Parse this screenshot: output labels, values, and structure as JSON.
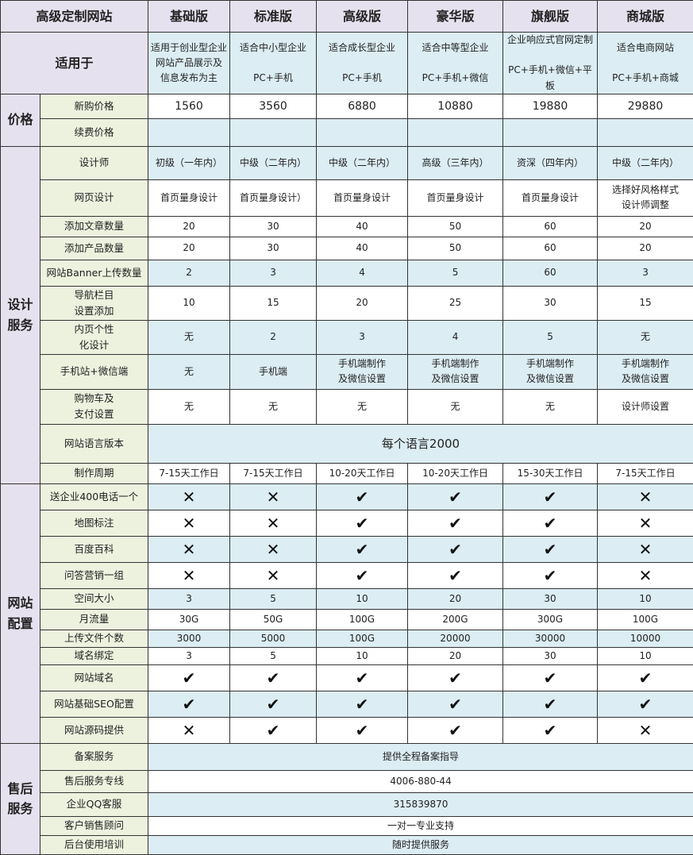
{
  "header": {
    "title": "高级定制网站",
    "plans": [
      "基础版",
      "标准版",
      "高级版",
      "豪华版",
      "旗舰版",
      "商城版"
    ]
  },
  "suitable": {
    "label": "适用于",
    "values": [
      "适用于创业型企业\n网站产品展示及\n信息发布为主",
      "适合中小型企业\n\nPC+手机",
      "适合成长型企业\n\nPC+手机",
      "适合中等型企业\n\nPC+手机+微信",
      "企业响应式官网定制\n\nPC+手机+微信+平板",
      "适合电商网站\n\nPC+手机+商城"
    ]
  },
  "sections": [
    {
      "category": "价格",
      "rows": [
        {
          "label": "新购价格",
          "values": [
            "1560",
            "3560",
            "6880",
            "10880",
            "19880",
            "29880"
          ]
        },
        {
          "label": "续费价格",
          "values": [
            "",
            "",
            "",
            "",
            "",
            ""
          ]
        }
      ]
    },
    {
      "category": "设计\n服务",
      "rows": [
        {
          "label": "设计师",
          "values": [
            "初级（一年内）",
            "中级（二年内）",
            "中级（二年内）",
            "高级（三年内）",
            "资深（四年内）",
            "中级（二年内）"
          ]
        },
        {
          "label": "网页设计",
          "values": [
            "首页量身设计",
            "首页量身设计）",
            "首页量身设计",
            "首页量身设计",
            "首页量身设计",
            "选择好风格样式\n设计师调整"
          ]
        },
        {
          "label": "添加文章数量",
          "values": [
            "20",
            "30",
            "40",
            "50",
            "60",
            "20"
          ]
        },
        {
          "label": "添加产品数量",
          "values": [
            "20",
            "30",
            "40",
            "50",
            "60",
            "20"
          ]
        },
        {
          "label": "网站Banner上传数量",
          "values": [
            "2",
            "3",
            "4",
            "5",
            "60",
            "3"
          ]
        },
        {
          "label": "导航栏目\n设置添加",
          "values": [
            "10",
            "15",
            "20",
            "25",
            "30",
            "15"
          ]
        },
        {
          "label": "内页个性\n化设计",
          "values": [
            "无",
            "2",
            "3",
            "4",
            "5",
            "无"
          ]
        },
        {
          "label": "手机站+微信端",
          "values": [
            "无",
            "手机端",
            "手机端制作\n及微信设置",
            "手机端制作\n及微信设置",
            "手机端制作\n及微信设置",
            "手机端制作\n及微信设置"
          ]
        },
        {
          "label": "购物车及\n支付设置",
          "values": [
            "无",
            "无",
            "无",
            "无",
            "无",
            "设计师设置"
          ]
        },
        {
          "label": "网站语言版本",
          "merged": "每个语言2000"
        },
        {
          "label": "制作周期",
          "values": [
            "7-15天工作日",
            "7-15天工作日",
            "10-20天工作日",
            "10-20天工作日",
            "15-30天工作日",
            "7-15天工作日"
          ]
        }
      ]
    },
    {
      "category": "网站\n配置",
      "rows": [
        {
          "label": "送企业400电话一个",
          "values": [
            "cross",
            "cross",
            "check",
            "check",
            "check",
            "cross"
          ]
        },
        {
          "label": "地图标注",
          "values": [
            "cross",
            "cross",
            "check",
            "check",
            "check",
            "cross"
          ]
        },
        {
          "label": "百度百科",
          "values": [
            "cross",
            "cross",
            "check",
            "check",
            "check",
            "cross"
          ]
        },
        {
          "label": "问答营销一组",
          "values": [
            "cross",
            "cross",
            "check",
            "check",
            "check",
            "cross"
          ]
        },
        {
          "label": "空间大小",
          "values": [
            "3",
            "5",
            "10",
            "20",
            "30",
            "10"
          ]
        },
        {
          "label": "月流量",
          "values": [
            "30G",
            "50G",
            "100G",
            "200G",
            "300G",
            "100G"
          ]
        },
        {
          "label": "上传文件个数",
          "values": [
            "3000",
            "5000",
            "100G",
            "20000",
            "30000",
            "10000"
          ]
        },
        {
          "label": "域名绑定",
          "values": [
            "3",
            "5",
            "10",
            "20",
            "30",
            "10"
          ]
        },
        {
          "label": "网站域名",
          "values": [
            "check",
            "check",
            "check",
            "check",
            "check",
            "check"
          ]
        },
        {
          "label": "网站基础SEO配置",
          "values": [
            "check",
            "check",
            "check",
            "check",
            "check",
            "check"
          ]
        },
        {
          "label": "网站源码提供",
          "values": [
            "cross",
            "check",
            "check",
            "check",
            "check",
            "cross"
          ]
        }
      ]
    },
    {
      "category": "售后\n服务",
      "rows": [
        {
          "label": "备案服务",
          "merged": "提供全程备案指导"
        },
        {
          "label": "售后服务专线",
          "merged": "4006-880-44"
        },
        {
          "label": "企业QQ客服",
          "merged": "315839870"
        },
        {
          "label": "客户销售顾问",
          "merged": "一对一专业支持"
        },
        {
          "label": "后台使用培训",
          "merged": "随时提供服务"
        }
      ]
    }
  ],
  "icons": {
    "check": "check-icon",
    "cross": "cross-icon"
  },
  "colors": {
    "header": "#e6e1ee",
    "label": "#edf2df",
    "blue_row": "#dcedf4"
  }
}
